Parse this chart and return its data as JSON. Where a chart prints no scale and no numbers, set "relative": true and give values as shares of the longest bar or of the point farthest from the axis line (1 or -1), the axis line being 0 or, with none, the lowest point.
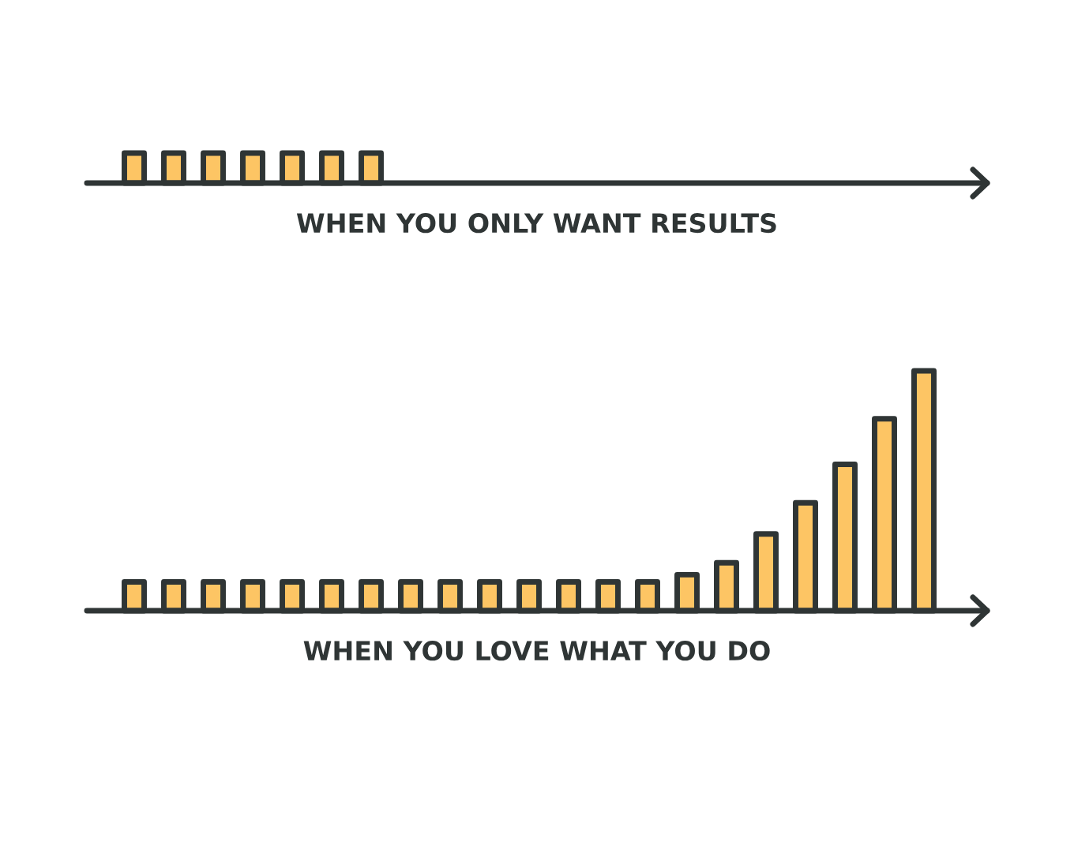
{
  "chart_data": [
    {
      "type": "bar",
      "relative": true,
      "xlabel": "WHEN YOU ONLY WANT RESULTS",
      "color": "#fdc564",
      "categories": [
        null,
        null,
        null,
        null,
        null,
        null,
        null
      ],
      "values": [
        1,
        1,
        1,
        1,
        1,
        1,
        1
      ]
    },
    {
      "type": "bar",
      "relative": true,
      "xlabel": "WHEN YOU LOVE WHAT YOU DO",
      "color": "#fdc564",
      "categories": [
        null,
        null,
        null,
        null,
        null,
        null,
        null,
        null,
        null,
        null,
        null,
        null,
        null,
        null,
        null,
        null,
        null,
        null,
        null,
        null,
        null
      ],
      "values": [
        0.12,
        0.12,
        0.12,
        0.12,
        0.12,
        0.12,
        0.12,
        0.12,
        0.12,
        0.12,
        0.12,
        0.12,
        0.12,
        0.12,
        0.15,
        0.2,
        0.32,
        0.45,
        0.61,
        0.8,
        1
      ]
    }
  ]
}
